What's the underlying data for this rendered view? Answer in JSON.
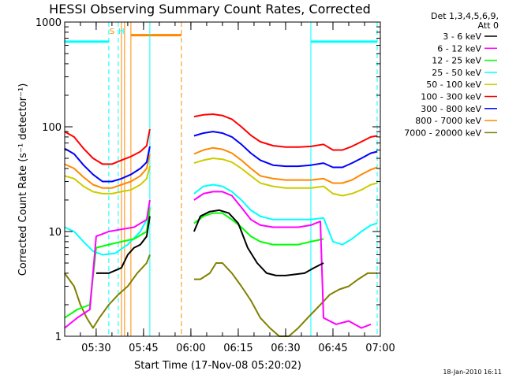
{
  "chart_data": {
    "type": "line",
    "title": "HESSI Observing Summary Count Rates, Corrected",
    "xlabel": "Start Time (17-Nov-08 05:20:02)",
    "ylabel": "Corrected Count Rate (s⁻¹ detector⁻¹)",
    "y_scale": "log",
    "ylim": [
      1,
      1000
    ],
    "y_ticks": [
      "1",
      "10",
      "100",
      "1000"
    ],
    "xlim": [
      "05:20:02",
      "07:00:00"
    ],
    "x_ticks": [
      "05:30",
      "05:45",
      "06:00",
      "06:15",
      "06:30",
      "06:45",
      "07:00"
    ],
    "legend_header": [
      "Det 1,3,4,5,6,9,",
      "Att 0"
    ],
    "legend_position": "outside-right",
    "series": [
      {
        "name": "3 - 6 keV",
        "color": "#000000",
        "segments": [
          {
            "x": [
              "05:30",
              "05:34",
              "05:38",
              "05:40",
              "05:42",
              "05:44",
              "05:46",
              "05:47"
            ],
            "y": [
              4,
              4,
              4.5,
              6,
              7,
              7.5,
              9,
              14
            ]
          },
          {
            "x": [
              "06:01",
              "06:03",
              "06:06",
              "06:09",
              "06:12",
              "06:15",
              "06:18",
              "06:21",
              "06:24",
              "06:27",
              "06:30",
              "06:33",
              "06:36",
              "06:39",
              "06:42"
            ],
            "y": [
              10,
              14,
              15.5,
              16,
              15,
              12,
              7,
              5,
              4,
              3.8,
              3.8,
              3.9,
              4,
              4.5,
              5
            ]
          }
        ]
      },
      {
        "name": "6 - 12 keV",
        "color": "#ff00ff",
        "segments": [
          {
            "x": [
              "05:20",
              "05:24",
              "05:28",
              "05:30",
              "05:34",
              "05:38",
              "05:42",
              "05:46",
              "05:47"
            ],
            "y": [
              1.2,
              1.5,
              1.8,
              9,
              10,
              10.5,
              11,
              13,
              20
            ]
          },
          {
            "x": [
              "06:01",
              "06:04",
              "06:07",
              "06:10",
              "06:13",
              "06:16",
              "06:19",
              "06:22",
              "06:26",
              "06:30",
              "06:34",
              "06:38",
              "06:41",
              "06:42",
              "06:46",
              "06:50",
              "06:54",
              "06:57"
            ],
            "y": [
              20,
              23,
              24,
              24,
              22,
              17,
              13,
              11.5,
              11,
              11,
              11,
              11.5,
              12.5,
              1.5,
              1.3,
              1.4,
              1.2,
              1.3
            ]
          }
        ]
      },
      {
        "name": "12 - 25 keV",
        "color": "#00ff00",
        "segments": [
          {
            "x": [
              "05:20",
              "05:24",
              "05:28",
              "05:30",
              "05:34",
              "05:38",
              "05:42",
              "05:46",
              "05:47"
            ],
            "y": [
              1.5,
              1.8,
              2,
              7,
              7.5,
              8,
              8.5,
              10,
              17
            ]
          },
          {
            "x": [
              "06:01",
              "06:04",
              "06:07",
              "06:10",
              "06:13",
              "06:16",
              "06:19",
              "06:22",
              "06:26",
              "06:30",
              "06:34",
              "06:38",
              "06:42"
            ],
            "y": [
              12,
              14,
              15,
              15,
              13,
              11,
              9,
              8,
              7.5,
              7.5,
              7.5,
              8,
              8.5
            ]
          }
        ]
      },
      {
        "name": "25 - 50 keV",
        "color": "#00ffff",
        "segments": [
          {
            "x": [
              "05:20",
              "05:23",
              "05:26",
              "05:29",
              "05:32",
              "05:36",
              "05:40",
              "05:44",
              "05:46",
              "05:47"
            ],
            "y": [
              11,
              10,
              8,
              6.5,
              6,
              6.2,
              7.5,
              10,
              13,
              16
            ]
          },
          {
            "x": [
              "06:01",
              "06:04",
              "06:07",
              "06:10",
              "06:13",
              "06:16",
              "06:19",
              "06:22",
              "06:26",
              "06:30",
              "06:34",
              "06:38",
              "06:42",
              "06:45",
              "06:48",
              "06:51",
              "06:54",
              "06:57",
              "06:59"
            ],
            "y": [
              23,
              27,
              28,
              27,
              24,
              20,
              16,
              14,
              13,
              13,
              13,
              13,
              13.5,
              8,
              7.5,
              8.5,
              10,
              11.5,
              12
            ]
          }
        ]
      },
      {
        "name": "50 - 100 keV",
        "color": "#cccc00",
        "segments": [
          {
            "x": [
              "05:20",
              "05:23",
              "05:26",
              "05:29",
              "05:32",
              "05:35",
              "05:38",
              "05:41",
              "05:44",
              "05:46",
              "05:47"
            ],
            "y": [
              34,
              32,
              27,
              24,
              23,
              23,
              24,
              25,
              28,
              32,
              42
            ]
          },
          {
            "x": [
              "06:01",
              "06:04",
              "06:07",
              "06:10",
              "06:13",
              "06:16",
              "06:19",
              "06:22",
              "06:26",
              "06:30",
              "06:34",
              "06:38",
              "06:42",
              "06:45",
              "06:48",
              "06:51",
              "06:54",
              "06:57",
              "06:59"
            ],
            "y": [
              45,
              48,
              50,
              49,
              46,
              40,
              34,
              29,
              27,
              26,
              26,
              26,
              27,
              23,
              22,
              23,
              25,
              28,
              29
            ]
          }
        ]
      },
      {
        "name": "100 - 300 keV",
        "color": "#ff0000",
        "segments": [
          {
            "x": [
              "05:20",
              "05:23",
              "05:26",
              "05:29",
              "05:32",
              "05:35",
              "05:38",
              "05:41",
              "05:44",
              "05:46",
              "05:47"
            ],
            "y": [
              90,
              80,
              62,
              50,
              44,
              44,
              48,
              52,
              58,
              66,
              95
            ]
          },
          {
            "x": [
              "06:01",
              "06:04",
              "06:07",
              "06:10",
              "06:13",
              "06:16",
              "06:19",
              "06:22",
              "06:26",
              "06:30",
              "06:34",
              "06:38",
              "06:42",
              "06:45",
              "06:48",
              "06:51",
              "06:54",
              "06:57",
              "06:59"
            ],
            "y": [
              125,
              130,
              132,
              128,
              118,
              100,
              83,
              72,
              66,
              64,
              64,
              65,
              68,
              60,
              60,
              65,
              72,
              80,
              82
            ]
          }
        ]
      },
      {
        "name": "300 - 800 keV",
        "color": "#0000ff",
        "segments": [
          {
            "x": [
              "05:20",
              "05:23",
              "05:26",
              "05:29",
              "05:32",
              "05:35",
              "05:38",
              "05:41",
              "05:44",
              "05:46",
              "05:47"
            ],
            "y": [
              62,
              55,
              43,
              35,
              30,
              30,
              32,
              35,
              40,
              46,
              65
            ]
          },
          {
            "x": [
              "06:01",
              "06:04",
              "06:07",
              "06:10",
              "06:13",
              "06:16",
              "06:19",
              "06:22",
              "06:26",
              "06:30",
              "06:34",
              "06:38",
              "06:42",
              "06:45",
              "06:48",
              "06:51",
              "06:54",
              "06:57",
              "06:59"
            ],
            "y": [
              82,
              87,
              90,
              87,
              80,
              68,
              56,
              48,
              43,
              42,
              42,
              43,
              45,
              41,
              41,
              45,
              50,
              56,
              58
            ]
          }
        ]
      },
      {
        "name": "800 - 7000 keV",
        "color": "#ff8800",
        "segments": [
          {
            "x": [
              "05:20",
              "05:23",
              "05:26",
              "05:29",
              "05:32",
              "05:35",
              "05:38",
              "05:41",
              "05:44",
              "05:46",
              "05:47"
            ],
            "y": [
              44,
              40,
              33,
              28,
              26,
              26,
              28,
              30,
              34,
              40,
              55
            ]
          },
          {
            "x": [
              "06:01",
              "06:04",
              "06:07",
              "06:10",
              "06:13",
              "06:16",
              "06:19",
              "06:22",
              "06:26",
              "06:30",
              "06:34",
              "06:38",
              "06:42",
              "06:45",
              "06:48",
              "06:51",
              "06:54",
              "06:57",
              "06:59"
            ],
            "y": [
              55,
              60,
              63,
              61,
              56,
              48,
              40,
              34,
              32,
              31,
              31,
              31,
              32,
              29,
              29,
              31,
              35,
              39,
              41
            ]
          }
        ]
      },
      {
        "name": "7000 - 20000 keV",
        "color": "#808000",
        "segments": [
          {
            "x": [
              "05:20",
              "05:23",
              "05:25",
              "05:27",
              "05:29",
              "05:31",
              "05:34",
              "05:37",
              "05:40",
              "05:43",
              "05:46",
              "05:47"
            ],
            "y": [
              4,
              3,
              2,
              1.5,
              1.2,
              1.5,
              2,
              2.5,
              3,
              4,
              5,
              6
            ]
          },
          {
            "x": [
              "06:01",
              "06:03",
              "06:06",
              "06:08",
              "06:10",
              "06:13",
              "06:16",
              "06:19",
              "06:22",
              "06:25",
              "06:28",
              "06:31",
              "06:34",
              "06:37",
              "06:41",
              "06:44",
              "06:47",
              "06:50",
              "06:53",
              "06:56",
              "06:59"
            ],
            "y": [
              3.5,
              3.5,
              4,
              5,
              5,
              4,
              3,
              2.2,
              1.5,
              1.2,
              1,
              1,
              1.2,
              1.5,
              2,
              2.5,
              2.8,
              3,
              3.5,
              4,
              4
            ]
          }
        ]
      }
    ],
    "shaded_intervals": [
      {
        "label": "S",
        "color": "#00ffff",
        "value": 650,
        "segments": [
          [
            "05:20:02",
            "05:34:00"
          ],
          [
            "06:38:00",
            "06:59:00"
          ]
        ]
      },
      {
        "label": "",
        "color": "#ff8800",
        "value": 750,
        "segments": [
          [
            "05:41:00",
            "05:57:00"
          ]
        ]
      }
    ],
    "vertical_markers": [
      {
        "time": "05:34:00",
        "color": "#00ffff",
        "style": "dashed"
      },
      {
        "time": "05:37:00",
        "color": "#00ffff",
        "style": "dashed"
      },
      {
        "time": "05:38:00",
        "color": "#ff8800",
        "style": "solid"
      },
      {
        "time": "05:39:00",
        "color": "#ff8800",
        "style": "solid"
      },
      {
        "time": "05:41:00",
        "color": "#ff8800",
        "style": "solid"
      },
      {
        "time": "05:47:00",
        "color": "#00ffff",
        "style": "solid"
      },
      {
        "time": "05:57:00",
        "color": "#ff8800",
        "style": "dashed"
      },
      {
        "time": "06:38:00",
        "color": "#00ffff",
        "style": "solid"
      },
      {
        "time": "06:59:00",
        "color": "#00ffff",
        "style": "dashed"
      }
    ],
    "top_labels": [
      {
        "text": "S",
        "time": "05:35:00",
        "color": "#ff8800"
      },
      {
        "text": "H",
        "time": "05:38:00",
        "color": "#00ffff"
      }
    ]
  },
  "footer_stamp": "18-Jan-2010 16:11"
}
